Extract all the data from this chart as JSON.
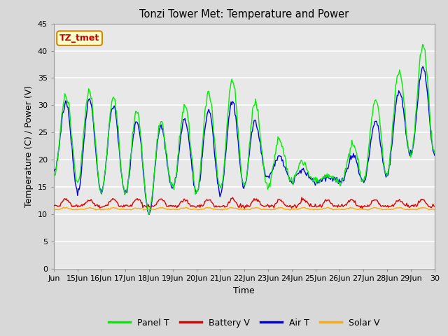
{
  "title": "Tonzi Tower Met: Temperature and Power",
  "xlabel": "Time",
  "ylabel": "Temperature (C) / Power (V)",
  "ylim": [
    0,
    45
  ],
  "yticks": [
    0,
    5,
    10,
    15,
    20,
    25,
    30,
    35,
    40,
    45
  ],
  "annotation_text": "TZ_tmet",
  "annotation_bg": "#ffffcc",
  "annotation_border": "#cc8800",
  "fig_bg": "#d8d8d8",
  "plot_bg": "#e0e0e0",
  "grid_color": "#f5f5f5",
  "colors": {
    "panel_t": "#00ee00",
    "battery_v": "#dd0000",
    "air_t": "#0000dd",
    "solar_v": "#ffaa00"
  },
  "legend_labels": [
    "Panel T",
    "Battery V",
    "Air T",
    "Solar V"
  ],
  "x_tick_labels": [
    "Jun",
    "15Jun",
    "16Jun",
    "17Jun",
    "18Jun",
    "19Jun",
    "20Jun",
    "21Jun",
    "22Jun",
    "23Jun",
    "24Jun",
    "25Jun",
    "26Jun",
    "27Jun",
    "28Jun",
    "29Jun",
    "30"
  ],
  "panel_t_peaks": [
    30,
    34,
    31,
    32,
    26,
    28,
    32,
    33,
    36,
    25,
    22,
    17,
    17,
    28,
    34,
    39,
    43,
    39,
    27
  ],
  "panel_t_troughs": [
    17,
    16,
    14,
    14,
    10,
    15,
    14,
    15,
    15,
    15,
    16,
    16,
    16,
    16,
    17,
    21,
    21,
    21
  ],
  "air_t_peaks": [
    30,
    31,
    31,
    29,
    25,
    27,
    28,
    30,
    32,
    22,
    19,
    17,
    17,
    24,
    30,
    35,
    39,
    38,
    27
  ],
  "air_t_troughs": [
    18,
    14,
    14,
    14,
    10,
    15,
    14,
    14,
    15,
    17,
    16,
    16,
    16,
    16,
    17,
    21,
    21,
    21
  ],
  "battery_base": 11.5,
  "battery_spike": 1.2,
  "solar_base": 10.9,
  "solar_var": 0.3,
  "num_points": 480
}
